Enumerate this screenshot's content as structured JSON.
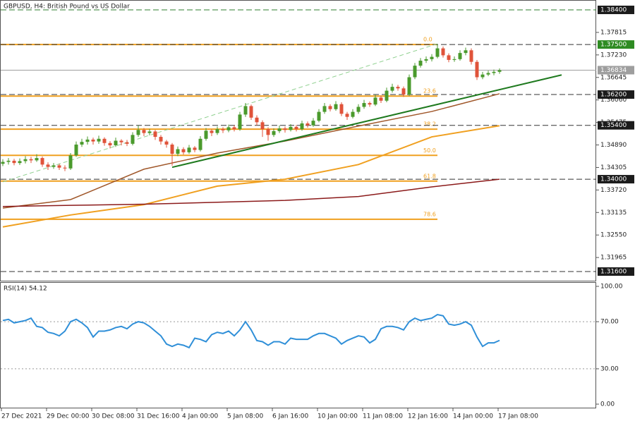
{
  "chart_data": {
    "type": "candlestick",
    "title": "GBPUSD, H4:  British Pound vs US Dollar",
    "categories": [
      "27 Dec 2021",
      null,
      null,
      null,
      null,
      null,
      null,
      null,
      "29 Dec 00:00",
      null,
      null,
      null,
      null,
      null,
      null,
      null,
      "30 Dec 08:00",
      null,
      null,
      null,
      null,
      null,
      null,
      null,
      "31 Dec 16:00",
      null,
      null,
      null,
      null,
      null,
      null,
      null,
      "4 Jan 00:00",
      null,
      null,
      null,
      null,
      null,
      null,
      null,
      "5 Jan 08:00",
      null,
      null,
      null,
      null,
      null,
      null,
      null,
      "6 Jan 16:00",
      null,
      null,
      null,
      null,
      null,
      null,
      null,
      "10 Jan 00:00",
      null,
      null,
      null,
      null,
      null,
      null,
      null,
      "11 Jan 08:00",
      null,
      null,
      null,
      null,
      null,
      null,
      null,
      "12 Jan 16:00",
      null,
      null,
      null,
      null,
      null,
      null,
      null,
      "14 Jan 00:00",
      null,
      null,
      null,
      null,
      null,
      null,
      null,
      "17 Jan 08:00"
    ],
    "ohlc": [
      [
        1.344,
        1.3452,
        1.3434,
        1.3445
      ],
      [
        1.3445,
        1.3455,
        1.3438,
        1.3448
      ],
      [
        1.3448,
        1.3453,
        1.3436,
        1.3442
      ],
      [
        1.3442,
        1.3454,
        1.3437,
        1.3447
      ],
      [
        1.3447,
        1.346,
        1.3441,
        1.3452
      ],
      [
        1.3452,
        1.3458,
        1.3442,
        1.3449
      ],
      [
        1.3449,
        1.3465,
        1.3445,
        1.3455
      ],
      [
        1.3455,
        1.3459,
        1.3432,
        1.3438
      ],
      [
        1.3438,
        1.3444,
        1.3424,
        1.3432
      ],
      [
        1.3432,
        1.3442,
        1.3427,
        1.3436
      ],
      [
        1.3436,
        1.344,
        1.3424,
        1.343
      ],
      [
        1.343,
        1.3436,
        1.3421,
        1.3428
      ],
      [
        1.3428,
        1.3468,
        1.3424,
        1.3462
      ],
      [
        1.3462,
        1.3498,
        1.3458,
        1.349
      ],
      [
        1.349,
        1.3505,
        1.3484,
        1.3497
      ],
      [
        1.3497,
        1.3511,
        1.349,
        1.3503
      ],
      [
        1.3503,
        1.3508,
        1.349,
        1.3498
      ],
      [
        1.3498,
        1.3513,
        1.3492,
        1.3505
      ],
      [
        1.3505,
        1.3509,
        1.3487,
        1.3494
      ],
      [
        1.3494,
        1.3499,
        1.348,
        1.3488
      ],
      [
        1.3488,
        1.3508,
        1.3484,
        1.35
      ],
      [
        1.35,
        1.3504,
        1.3488,
        1.3496
      ],
      [
        1.3496,
        1.3502,
        1.3486,
        1.3492
      ],
      [
        1.3492,
        1.3522,
        1.3488,
        1.3515
      ],
      [
        1.3515,
        1.354,
        1.351,
        1.3528
      ],
      [
        1.3528,
        1.3533,
        1.3512,
        1.352
      ],
      [
        1.352,
        1.3531,
        1.3514,
        1.3524
      ],
      [
        1.3524,
        1.3528,
        1.3502,
        1.351
      ],
      [
        1.351,
        1.3515,
        1.349,
        1.3498
      ],
      [
        1.3498,
        1.3502,
        1.3482,
        1.349
      ],
      [
        1.349,
        1.3494,
        1.3435,
        1.3466
      ],
      [
        1.3466,
        1.3485,
        1.346,
        1.3478
      ],
      [
        1.3478,
        1.3483,
        1.3464,
        1.347
      ],
      [
        1.347,
        1.3489,
        1.3466,
        1.3482
      ],
      [
        1.3482,
        1.3486,
        1.347,
        1.3476
      ],
      [
        1.3476,
        1.3512,
        1.3472,
        1.3505
      ],
      [
        1.3505,
        1.3533,
        1.35,
        1.3526
      ],
      [
        1.3526,
        1.353,
        1.3512,
        1.352
      ],
      [
        1.352,
        1.3537,
        1.3515,
        1.353
      ],
      [
        1.353,
        1.3535,
        1.352,
        1.3527
      ],
      [
        1.3527,
        1.3542,
        1.3522,
        1.3535
      ],
      [
        1.3535,
        1.354,
        1.3524,
        1.353
      ],
      [
        1.353,
        1.3575,
        1.3526,
        1.3568
      ],
      [
        1.3568,
        1.3598,
        1.3562,
        1.359
      ],
      [
        1.359,
        1.3594,
        1.3554,
        1.356
      ],
      [
        1.356,
        1.3566,
        1.354,
        1.3548
      ],
      [
        1.3548,
        1.3553,
        1.351,
        1.353
      ],
      [
        1.353,
        1.3535,
        1.35,
        1.3515
      ],
      [
        1.3515,
        1.3532,
        1.351,
        1.3525
      ],
      [
        1.3525,
        1.354,
        1.352,
        1.3532
      ],
      [
        1.3532,
        1.3537,
        1.3521,
        1.3528
      ],
      [
        1.3528,
        1.3543,
        1.3524,
        1.3536
      ],
      [
        1.3536,
        1.3541,
        1.3524,
        1.353
      ],
      [
        1.353,
        1.3552,
        1.3526,
        1.3545
      ],
      [
        1.3545,
        1.355,
        1.3534,
        1.354
      ],
      [
        1.354,
        1.3559,
        1.3536,
        1.3552
      ],
      [
        1.3552,
        1.3582,
        1.3548,
        1.3575
      ],
      [
        1.3575,
        1.3598,
        1.357,
        1.359
      ],
      [
        1.359,
        1.3595,
        1.3576,
        1.3582
      ],
      [
        1.3582,
        1.3603,
        1.3578,
        1.3595
      ],
      [
        1.3595,
        1.36,
        1.3564,
        1.357
      ],
      [
        1.357,
        1.3575,
        1.3554,
        1.3562
      ],
      [
        1.3562,
        1.3582,
        1.3558,
        1.3575
      ],
      [
        1.3575,
        1.3595,
        1.357,
        1.3588
      ],
      [
        1.3588,
        1.3606,
        1.3583,
        1.3598
      ],
      [
        1.3598,
        1.3602,
        1.3588,
        1.3594
      ],
      [
        1.3594,
        1.362,
        1.359,
        1.3612
      ],
      [
        1.3612,
        1.3617,
        1.3598,
        1.3604
      ],
      [
        1.3604,
        1.3638,
        1.36,
        1.363
      ],
      [
        1.363,
        1.3648,
        1.3625,
        1.364
      ],
      [
        1.364,
        1.3645,
        1.363,
        1.3636
      ],
      [
        1.3636,
        1.3641,
        1.3614,
        1.362
      ],
      [
        1.362,
        1.3672,
        1.3616,
        1.3665
      ],
      [
        1.3665,
        1.3702,
        1.366,
        1.3695
      ],
      [
        1.3695,
        1.3715,
        1.369,
        1.3708
      ],
      [
        1.3708,
        1.3719,
        1.3702,
        1.3712
      ],
      [
        1.3712,
        1.3725,
        1.3706,
        1.3718
      ],
      [
        1.3718,
        1.375,
        1.3714,
        1.374
      ],
      [
        1.374,
        1.3745,
        1.3716,
        1.3722
      ],
      [
        1.3722,
        1.3727,
        1.3704,
        1.371
      ],
      [
        1.371,
        1.3719,
        1.3705,
        1.3712
      ],
      [
        1.3712,
        1.3735,
        1.3708,
        1.3728
      ],
      [
        1.3728,
        1.3742,
        1.3722,
        1.3735
      ],
      [
        1.3735,
        1.374,
        1.3698,
        1.3705
      ],
      [
        1.3705,
        1.371,
        1.3658,
        1.3665
      ],
      [
        1.3665,
        1.3679,
        1.366,
        1.3672
      ],
      [
        1.3672,
        1.3682,
        1.3668,
        1.3676
      ],
      [
        1.3676,
        1.3685,
        1.367,
        1.3679
      ],
      [
        1.3679,
        1.3688,
        1.3674,
        1.36834
      ]
    ],
    "up_color": "#4a9a2c",
    "down_color": "#e0533a",
    "ylim": [
      1.31362,
      1.38657
    ],
    "yticks": [
      1.37815,
      {
        "value": 1.3723,
        "label": "1.37230"
      },
      1.36645,
      {
        "value": 1.3606,
        "label": "1.36060"
      },
      1.35475,
      {
        "value": 1.3489,
        "label": "1.34890"
      },
      1.34305,
      {
        "value": 1.3372,
        "label": "1.33720"
      },
      1.33135,
      {
        "value": 1.3255,
        "label": "1.32550"
      },
      1.31965
    ],
    "levels": [
      {
        "value": 1.384,
        "label": "1.38400",
        "color": "#1b1b1b",
        "style": "dashed",
        "line_color": "#2f7d2f"
      },
      {
        "value": 1.375,
        "label": "1.37500",
        "color": "#2e8b22",
        "style": "dashed",
        "line_color": "#333333"
      },
      {
        "value": 1.36834,
        "label": "1.36834",
        "color": "#9e9e9e",
        "style": "solid",
        "line_color": "#9e9e9e"
      },
      {
        "value": 1.362,
        "label": "1.36200",
        "color": "#1b1b1b",
        "style": "dashed",
        "line_color": "#333333"
      },
      {
        "value": 1.354,
        "label": "1.35400",
        "color": "#1b1b1b",
        "style": "dashed",
        "line_color": "#333333"
      },
      {
        "value": 1.34,
        "label": "1.34000",
        "color": "#1b1b1b",
        "style": "dashed",
        "line_color": "#333333"
      },
      {
        "value": 1.316,
        "label": "1.31600",
        "color": "#1b1b1b",
        "style": "dashed",
        "line_color": "#333333"
      }
    ],
    "fib_color": "#f0a020",
    "fib_levels": [
      {
        "value": 1.375,
        "label": "0.0"
      },
      {
        "value": 1.3616,
        "label": "23.6"
      },
      {
        "value": 1.353,
        "label": "38.2"
      },
      {
        "value": 1.3462,
        "label": "50.0"
      },
      {
        "value": 1.3395,
        "label": "61.8"
      },
      {
        "value": 1.3296,
        "label": "78.6"
      }
    ],
    "overlays": [
      {
        "color": "#a0572a",
        "style": "solid",
        "width": 1.5,
        "x": [
          0,
          12,
          25,
          38,
          50,
          63,
          76,
          88
        ],
        "values": [
          1.3325,
          1.3347,
          1.3426,
          1.3468,
          1.3499,
          1.3538,
          1.3576,
          1.3622
        ]
      },
      {
        "color": "#f0a020",
        "style": "solid",
        "width": 2,
        "x": [
          0,
          12,
          25,
          38,
          50,
          63,
          76,
          88
        ],
        "values": [
          1.3276,
          1.3307,
          1.3334,
          1.3382,
          1.34,
          1.3438,
          1.351,
          1.3539
        ]
      },
      {
        "color": "#8b1a1a",
        "style": "solid",
        "width": 1.5,
        "x": [
          0,
          12,
          25,
          38,
          50,
          63,
          76,
          88
        ],
        "values": [
          1.3329,
          1.3332,
          1.3335,
          1.334,
          1.3345,
          1.3355,
          1.338,
          1.34
        ]
      },
      {
        "color": "#1f7a1f",
        "style": "solid",
        "width": 2,
        "x": [
          30,
          99
        ],
        "values": [
          1.3431,
          1.3671
        ]
      },
      {
        "color": "#8fd08f",
        "style": "dashed",
        "width": 1,
        "x": [
          0,
          77
        ],
        "values": [
          1.3393,
          1.3752
        ]
      }
    ],
    "rsi": {
      "label": "RSI(14) 54.12",
      "color": "#2f8fd8",
      "ylim": [
        0,
        100
      ],
      "yticks": [
        {
          "value": 100,
          "label": "100.00"
        },
        {
          "value": 70,
          "label": "70.00"
        },
        {
          "value": 30,
          "label": "30.00"
        },
        {
          "value": 0,
          "label": "0.00"
        }
      ],
      "values": [
        71,
        72,
        69,
        70,
        71,
        73,
        66,
        65,
        61,
        60,
        58,
        62,
        70,
        72,
        69,
        65,
        57,
        62,
        62,
        63,
        65,
        66,
        64,
        68,
        70,
        69,
        66,
        62,
        58,
        51,
        49,
        51,
        50,
        48,
        56,
        55,
        53,
        59,
        61,
        60,
        62,
        58,
        63,
        70,
        63,
        54,
        53,
        50,
        53,
        53,
        51,
        56,
        55,
        55,
        55,
        58,
        60,
        60,
        58,
        56,
        51,
        54,
        56,
        58,
        57,
        52,
        55,
        64,
        66,
        66,
        65,
        63,
        70,
        73,
        71,
        72,
        73,
        76,
        75,
        68,
        67,
        68,
        70,
        67,
        57,
        49,
        52,
        52,
        54.12
      ]
    }
  }
}
